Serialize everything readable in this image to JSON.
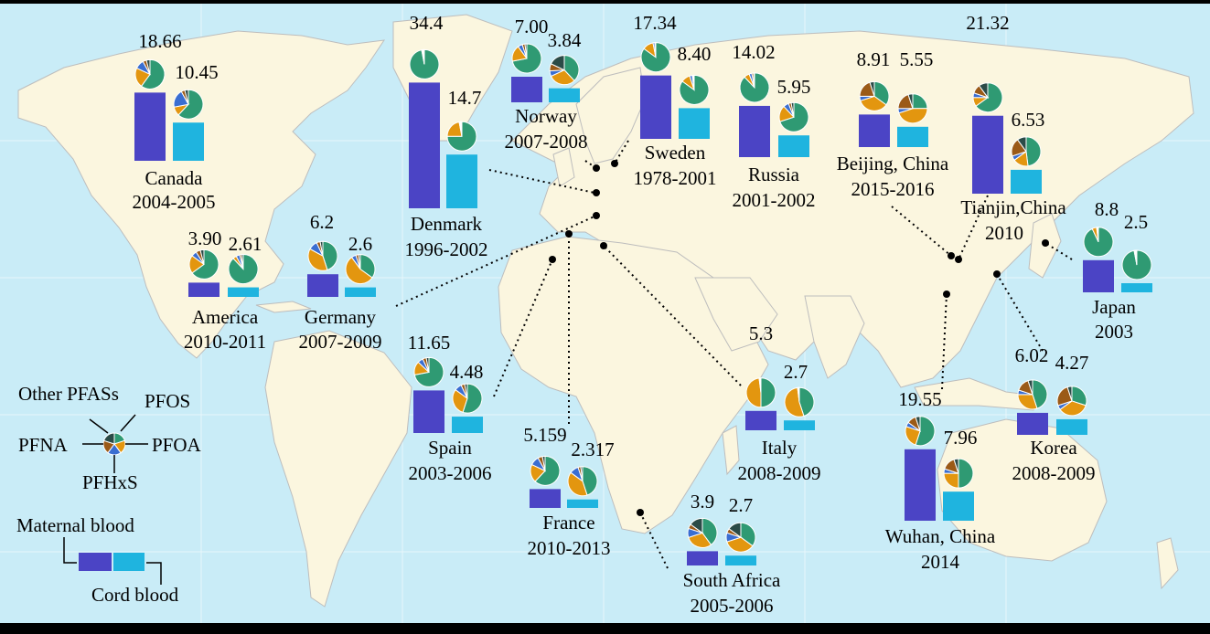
{
  "colors": {
    "ocean": "#c9ecf7",
    "land": "#fbf6df",
    "maternal": "#4b44c5",
    "cord": "#1fb4df",
    "PFOS": "#2f9a73",
    "PFOA": "#e3960f",
    "PFHxS": "#3a6ed1",
    "PFNA": "#9b5a17",
    "Other PFASs": "#2b4b47"
  },
  "legend": {
    "pie_labels": [
      "Other PFASs",
      "PFOS",
      "PFOA",
      "PFHxS",
      "PFNA"
    ],
    "maternal_label": "Maternal blood",
    "cord_label": "Cord blood"
  },
  "studies": [
    {
      "id": "canada",
      "name": "Canada",
      "years": "2004-2005",
      "maternal_label": "18.66",
      "cord_label": "10.45",
      "maternal": 18.66,
      "cord": 10.45,
      "maternal_pie": {
        "PFOS": 0.6,
        "PFOA": 0.22,
        "PFHxS": 0.1,
        "PFNA": 0.04,
        "Other PFASs": 0.04
      },
      "cord_pie": {
        "PFOS": 0.62,
        "PFOA": 0.1,
        "PFHxS": 0.2,
        "PFNA": 0.04,
        "Other PFASs": 0.04
      }
    },
    {
      "id": "denmark",
      "name": "Denmark",
      "years": "1996-2002",
      "maternal_label": "34.4",
      "cord_label": "14.7",
      "maternal": 34.4,
      "cord": 14.7,
      "maternal_pie": {
        "PFOS": 0.97,
        "PFOA": 0.01,
        "PFHxS": 0.01,
        "PFNA": 0.01,
        "Other PFASs": 0
      },
      "cord_pie": {
        "PFOS": 0.75,
        "PFOA": 0.22,
        "PFHxS": 0.01,
        "PFNA": 0.01,
        "Other PFASs": 0.01
      }
    },
    {
      "id": "norway",
      "name": "Norway",
      "years": "2007-2008",
      "maternal_label": "7.00",
      "cord_label": "3.84",
      "maternal": 7.0,
      "cord": 3.84,
      "maternal_pie": {
        "PFOS": 0.72,
        "PFOA": 0.18,
        "PFHxS": 0.05,
        "PFNA": 0.03,
        "Other PFASs": 0.02
      },
      "cord_pie": {
        "PFOS": 0.38,
        "PFOA": 0.3,
        "PFHxS": 0.06,
        "PFNA": 0.08,
        "Other PFASs": 0.18
      }
    },
    {
      "id": "sweden",
      "name": "Sweden",
      "years": "1978-2001",
      "maternal_label": "17.34",
      "cord_label": "8.40",
      "maternal": 17.34,
      "cord": 8.4,
      "maternal_pie": {
        "PFOS": 0.85,
        "PFOA": 0.12,
        "PFHxS": 0.02,
        "PFNA": 0.01,
        "Other PFASs": 0
      },
      "cord_pie": {
        "PFOS": 0.85,
        "PFOA": 0.1,
        "PFHxS": 0.03,
        "PFNA": 0.01,
        "Other PFASs": 0.01
      }
    },
    {
      "id": "russia",
      "name": "Russia",
      "years": "2001-2002",
      "maternal_label": "14.02",
      "cord_label": "5.95",
      "maternal": 14.02,
      "cord": 5.95,
      "maternal_pie": {
        "PFOS": 0.88,
        "PFOA": 0.06,
        "PFHxS": 0.03,
        "PFNA": 0.02,
        "Other PFASs": 0.01
      },
      "cord_pie": {
        "PFOS": 0.7,
        "PFOA": 0.18,
        "PFHxS": 0.06,
        "PFNA": 0.03,
        "Other PFASs": 0.03
      }
    },
    {
      "id": "beijing",
      "name": "Beijing, China",
      "years": "2015-2016",
      "maternal_label": "8.91",
      "cord_label": "5.55",
      "maternal": 8.91,
      "cord": 5.55,
      "maternal_pie": {
        "PFOS": 0.35,
        "PFOA": 0.35,
        "PFHxS": 0.05,
        "PFNA": 0.2,
        "Other PFASs": 0.05
      },
      "cord_pie": {
        "PFOS": 0.25,
        "PFOA": 0.45,
        "PFHxS": 0.05,
        "PFNA": 0.2,
        "Other PFASs": 0.05
      }
    },
    {
      "id": "tianjin",
      "name": "Tianjin,China",
      "years": "2010",
      "maternal_label": "21.32",
      "cord_label": "6.53",
      "maternal": 21.32,
      "cord": 6.53,
      "maternal_pie": {
        "PFOS": 0.65,
        "PFOA": 0.1,
        "PFHxS": 0.05,
        "PFNA": 0.1,
        "Other PFASs": 0.1
      },
      "cord_pie": {
        "PFOS": 0.48,
        "PFOA": 0.17,
        "PFHxS": 0.05,
        "PFNA": 0.2,
        "Other PFASs": 0.1
      }
    },
    {
      "id": "japan",
      "name": "Japan",
      "years": "2003",
      "maternal_label": "8.8",
      "cord_label": "2.5",
      "maternal": 8.8,
      "cord": 2.5,
      "maternal_pie": {
        "PFOS": 0.93,
        "PFOA": 0.05,
        "PFHxS": 0.01,
        "PFNA": 0.01,
        "Other PFASs": 0
      },
      "cord_pie": {
        "PFOS": 0.97,
        "PFOA": 0.01,
        "PFHxS": 0.01,
        "PFNA": 0.01,
        "Other PFASs": 0
      }
    },
    {
      "id": "america",
      "name": "America",
      "years": "2010-2011",
      "maternal_label": "3.90",
      "cord_label": "2.61",
      "maternal": 3.9,
      "cord": 2.61,
      "maternal_pie": {
        "PFOS": 0.65,
        "PFOA": 0.2,
        "PFHxS": 0.06,
        "PFNA": 0.05,
        "Other PFASs": 0.04
      },
      "cord_pie": {
        "PFOS": 0.88,
        "PFOA": 0.04,
        "PFHxS": 0.04,
        "PFNA": 0.02,
        "Other PFASs": 0.02
      }
    },
    {
      "id": "germany",
      "name": "Germany",
      "years": "2007-2009",
      "maternal_label": "6.2",
      "cord_label": "2.6",
      "maternal": 6.2,
      "cord": 2.6,
      "maternal_pie": {
        "PFOS": 0.45,
        "PFOA": 0.38,
        "PFHxS": 0.1,
        "PFNA": 0.04,
        "Other PFASs": 0.03
      },
      "cord_pie": {
        "PFOS": 0.35,
        "PFOA": 0.55,
        "PFHxS": 0.05,
        "PFNA": 0.03,
        "Other PFASs": 0.02
      }
    },
    {
      "id": "spain",
      "name": "Spain",
      "years": "2003-2006",
      "maternal_label": "11.65",
      "cord_label": "4.48",
      "maternal": 11.65,
      "cord": 4.48,
      "maternal_pie": {
        "PFOS": 0.72,
        "PFOA": 0.15,
        "PFHxS": 0.06,
        "PFNA": 0.04,
        "Other PFASs": 0.03
      },
      "cord_pie": {
        "PFOS": 0.55,
        "PFOA": 0.3,
        "PFHxS": 0.08,
        "PFNA": 0.04,
        "Other PFASs": 0.03
      }
    },
    {
      "id": "france",
      "name": "France",
      "years": "2010-2013",
      "maternal_label": "5.159",
      "cord_label": "2.317",
      "maternal": 5.159,
      "cord": 2.317,
      "maternal_pie": {
        "PFOS": 0.62,
        "PFOA": 0.2,
        "PFHxS": 0.1,
        "PFNA": 0.05,
        "Other PFASs": 0.03
      },
      "cord_pie": {
        "PFOS": 0.45,
        "PFOA": 0.4,
        "PFHxS": 0.1,
        "PFNA": 0.03,
        "Other PFASs": 0.02
      }
    },
    {
      "id": "italy",
      "name": "Italy",
      "years": "2008-2009",
      "maternal_label": "5.3",
      "cord_label": "2.7",
      "maternal": 5.3,
      "cord": 2.7,
      "maternal_pie": {
        "PFOS": 0.5,
        "PFOA": 0.48,
        "PFHxS": 0.01,
        "PFNA": 0.01,
        "Other PFASs": 0
      },
      "cord_pie": {
        "PFOS": 0.45,
        "PFOA": 0.53,
        "PFHxS": 0.01,
        "PFNA": 0.01,
        "Other PFASs": 0
      }
    },
    {
      "id": "southafrica",
      "name": "South Africa",
      "years": "2005-2006",
      "maternal_label": "3.9",
      "cord_label": "2.7",
      "maternal": 3.9,
      "cord": 2.7,
      "maternal_pie": {
        "PFOS": 0.4,
        "PFOA": 0.3,
        "PFHxS": 0.1,
        "PFNA": 0.05,
        "Other PFASs": 0.15
      },
      "cord_pie": {
        "PFOS": 0.35,
        "PFOA": 0.35,
        "PFHxS": 0.1,
        "PFNA": 0.05,
        "Other PFASs": 0.15
      }
    },
    {
      "id": "wuhan",
      "name": "Wuhan, China",
      "years": "2014",
      "maternal_label": "19.55",
      "cord_label": "7.96",
      "maternal": 19.55,
      "cord": 7.96,
      "maternal_pie": {
        "PFOS": 0.55,
        "PFOA": 0.25,
        "PFHxS": 0.05,
        "PFNA": 0.1,
        "Other PFASs": 0.05
      },
      "cord_pie": {
        "PFOS": 0.5,
        "PFOA": 0.25,
        "PFHxS": 0.05,
        "PFNA": 0.15,
        "Other PFASs": 0.05
      }
    },
    {
      "id": "korea",
      "name": "Korea",
      "years": "2008-2009",
      "maternal_label": "6.02",
      "cord_label": "4.27",
      "maternal": 6.02,
      "cord": 4.27,
      "maternal_pie": {
        "PFOS": 0.45,
        "PFOA": 0.3,
        "PFHxS": 0.05,
        "PFNA": 0.15,
        "Other PFASs": 0.05
      },
      "cord_pie": {
        "PFOS": 0.3,
        "PFOA": 0.35,
        "PFHxS": 0.05,
        "PFNA": 0.25,
        "Other PFASs": 0.05
      }
    }
  ]
}
